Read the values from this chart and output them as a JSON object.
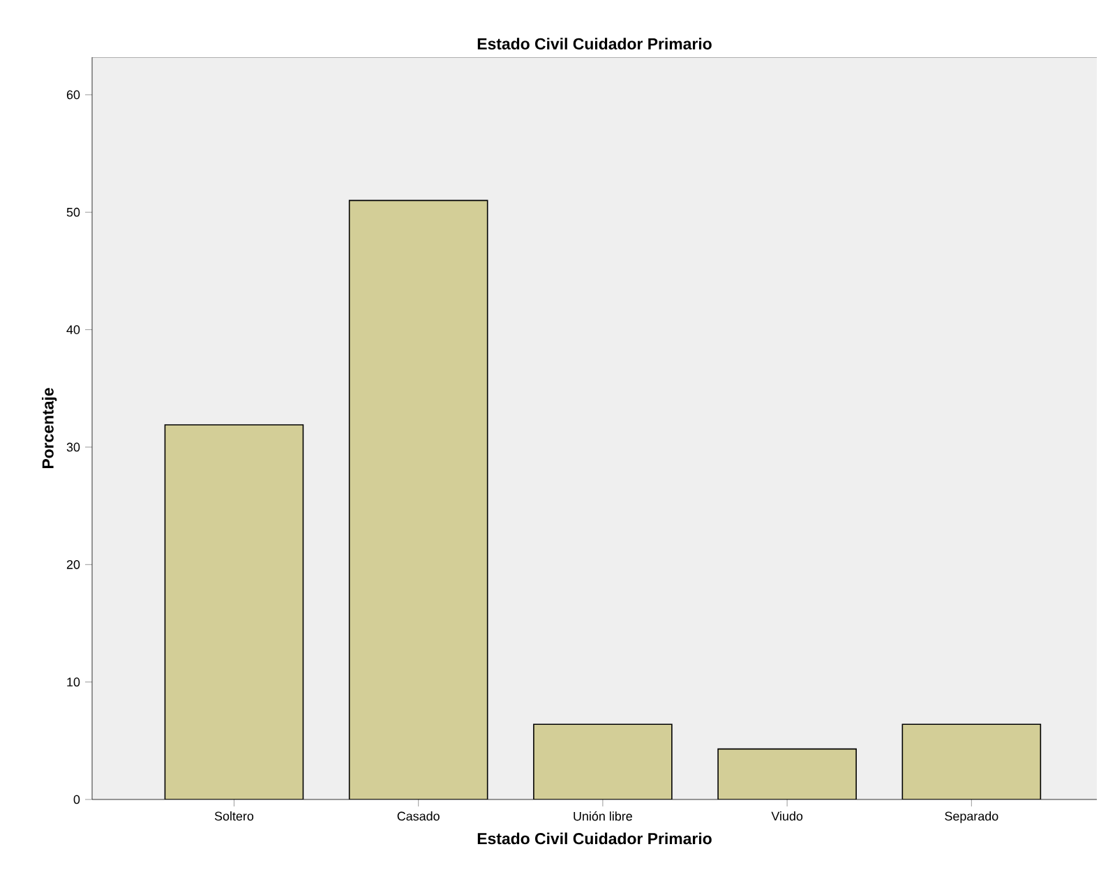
{
  "chart_data": {
    "type": "bar",
    "title": "Estado Civil Cuidador Primario",
    "xlabel": "Estado Civil Cuidador Primario",
    "ylabel": "Porcentaje",
    "categories": [
      "Soltero",
      "Casado",
      "Unión libre",
      "Viudo",
      "Separado"
    ],
    "values": [
      31.9,
      51.0,
      6.4,
      4.3,
      6.4
    ],
    "color": "#d3ce97",
    "ylim": [
      0,
      63.2
    ],
    "yticks": [
      0,
      10,
      20,
      30,
      40,
      50,
      60
    ],
    "grid": false
  }
}
